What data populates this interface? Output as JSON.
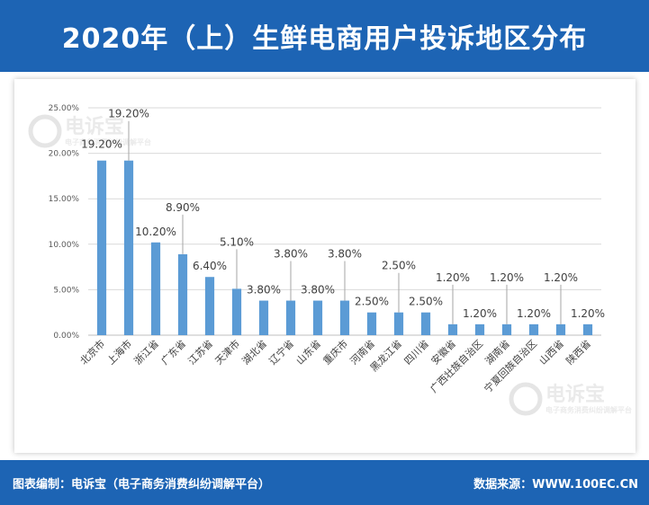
{
  "header": {
    "title": "2020年（上）生鲜电商用户投诉地区分布"
  },
  "footer": {
    "left": "图表编制：电诉宝（电子商务消费纠纷调解平台）",
    "right": "数据来源：WWW.100EC.CN"
  },
  "watermark": {
    "brand": "电诉宝",
    "tagline": "电子商务消费纠纷调解平台"
  },
  "chart_data": {
    "type": "bar",
    "title": "",
    "xlabel": "",
    "ylabel": "",
    "ylim": [
      0,
      25
    ],
    "yticks": [
      "0.00%",
      "5.00%",
      "10.00%",
      "15.00%",
      "20.00%",
      "25.00%"
    ],
    "grid": true,
    "bar_color": "#5b9bd5",
    "categories": [
      "北京市",
      "上海市",
      "浙江省",
      "广东省",
      "江苏省",
      "天津市",
      "湖北省",
      "辽宁省",
      "山东省",
      "重庆市",
      "河南省",
      "黑龙江省",
      "四川省",
      "安徽省",
      "广西壮族自治区",
      "湖南省",
      "宁夏回族自治区",
      "山西省",
      "陕西省"
    ],
    "values": [
      19.2,
      19.2,
      10.2,
      8.9,
      6.4,
      5.1,
      3.8,
      3.8,
      3.8,
      3.8,
      2.5,
      2.5,
      2.5,
      1.2,
      1.2,
      1.2,
      1.2,
      1.2,
      1.2
    ],
    "labels": [
      "19.20%",
      "19.20%",
      "10.20%",
      "8.90%",
      "6.40%",
      "5.10%",
      "3.80%",
      "3.80%",
      "3.80%",
      "3.80%",
      "2.50%",
      "2.50%",
      "2.50%",
      "1.20%",
      "1.20%",
      "1.20%",
      "1.20%",
      "1.20%",
      "1.20%"
    ]
  }
}
